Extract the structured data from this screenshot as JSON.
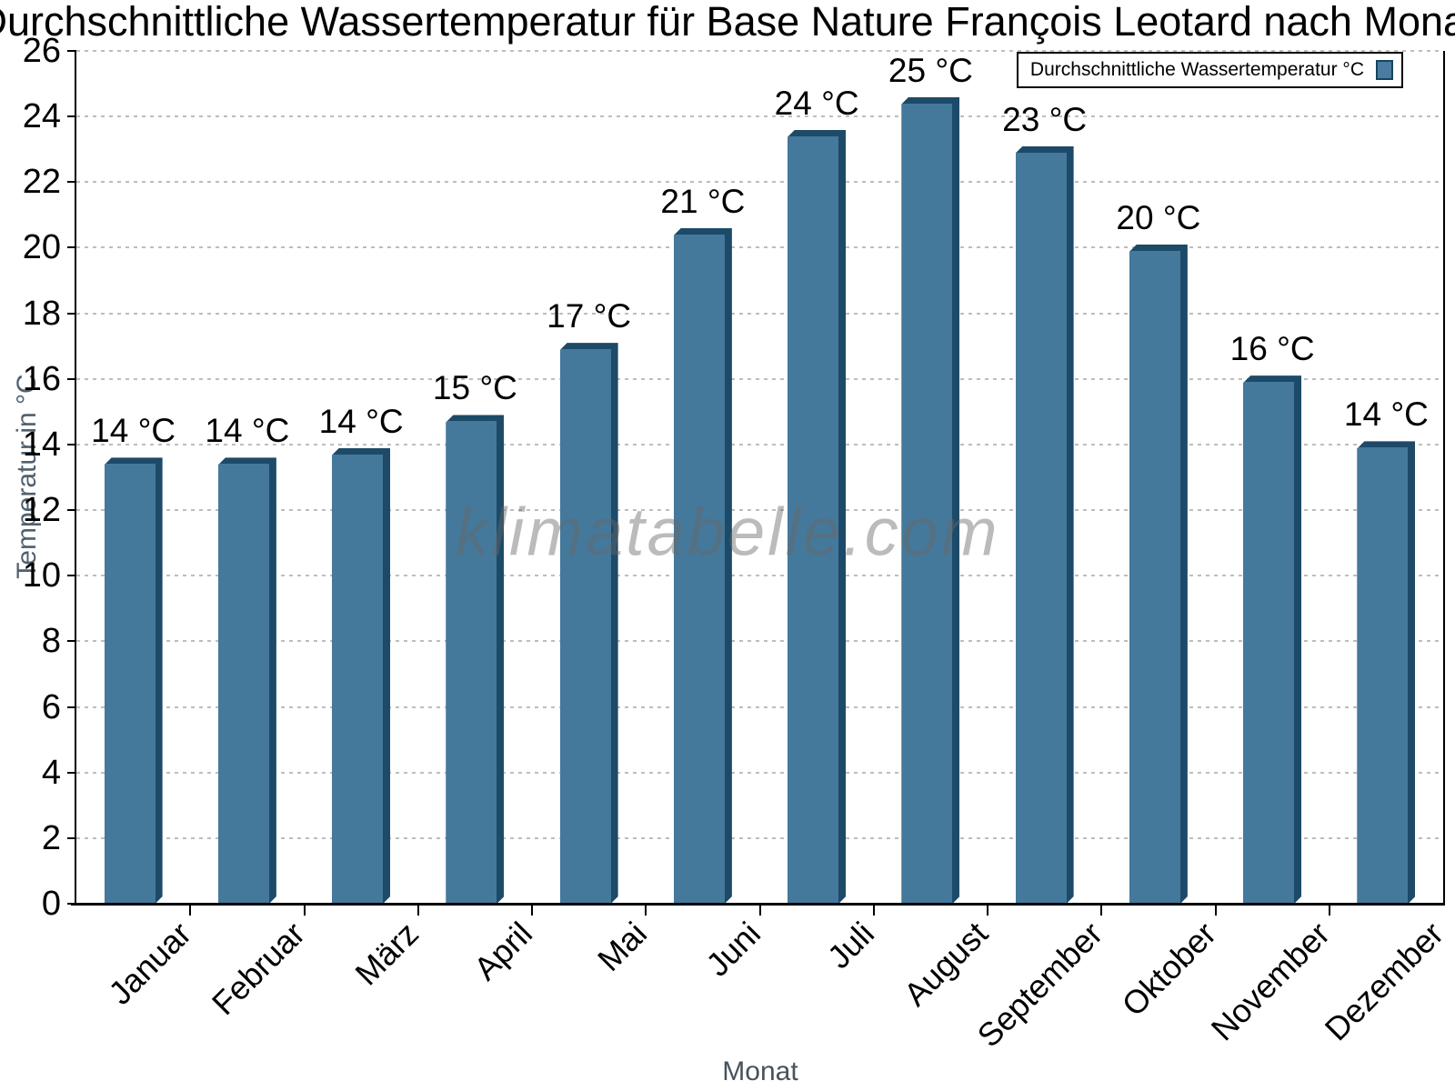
{
  "title": "Durchschnittliche Wassertemperatur für Base Nature François Leotard nach Monat",
  "watermark": "klimatabelle.com",
  "legend": {
    "label": "Durchschnittliche Wassertemperatur °C",
    "position": "top-right"
  },
  "axes": {
    "y_title": "Temperatur in °C",
    "x_title": "Monat"
  },
  "colors": {
    "bar_face": "#44799c",
    "bar_dark": "#1d4a68",
    "legend_swatch": "#4a7ca1",
    "gridline": "#bdbdbd",
    "axis": "#000000",
    "axis_title_text": "#51606e"
  },
  "chart_data": {
    "type": "bar",
    "title": "Durchschnittliche Wassertemperatur für Base Nature François Leotard nach Monat",
    "xlabel": "Monat",
    "ylabel": "Temperatur in °C",
    "categories": [
      "Januar",
      "Februar",
      "März",
      "April",
      "Mai",
      "Juni",
      "Juli",
      "August",
      "September",
      "Oktober",
      "November",
      "Dezember"
    ],
    "series": [
      {
        "name": "Durchschnittliche Wassertemperatur °C",
        "values": [
          13.6,
          13.6,
          13.9,
          14.9,
          17.1,
          20.6,
          23.6,
          24.6,
          23.1,
          20.1,
          16.1,
          14.1
        ],
        "bar_labels": [
          "14 °C",
          "14 °C",
          "14 °C",
          "15 °C",
          "17 °C",
          "21 °C",
          "24 °C",
          "25 °C",
          "23 °C",
          "20 °C",
          "16 °C",
          "14 °C"
        ]
      }
    ],
    "ylim": [
      0,
      26
    ],
    "yticks": [
      0,
      2,
      4,
      6,
      8,
      10,
      12,
      14,
      16,
      18,
      20,
      22,
      24,
      26
    ],
    "grid": "horizontal-dotted",
    "legend_position": "top-right"
  }
}
